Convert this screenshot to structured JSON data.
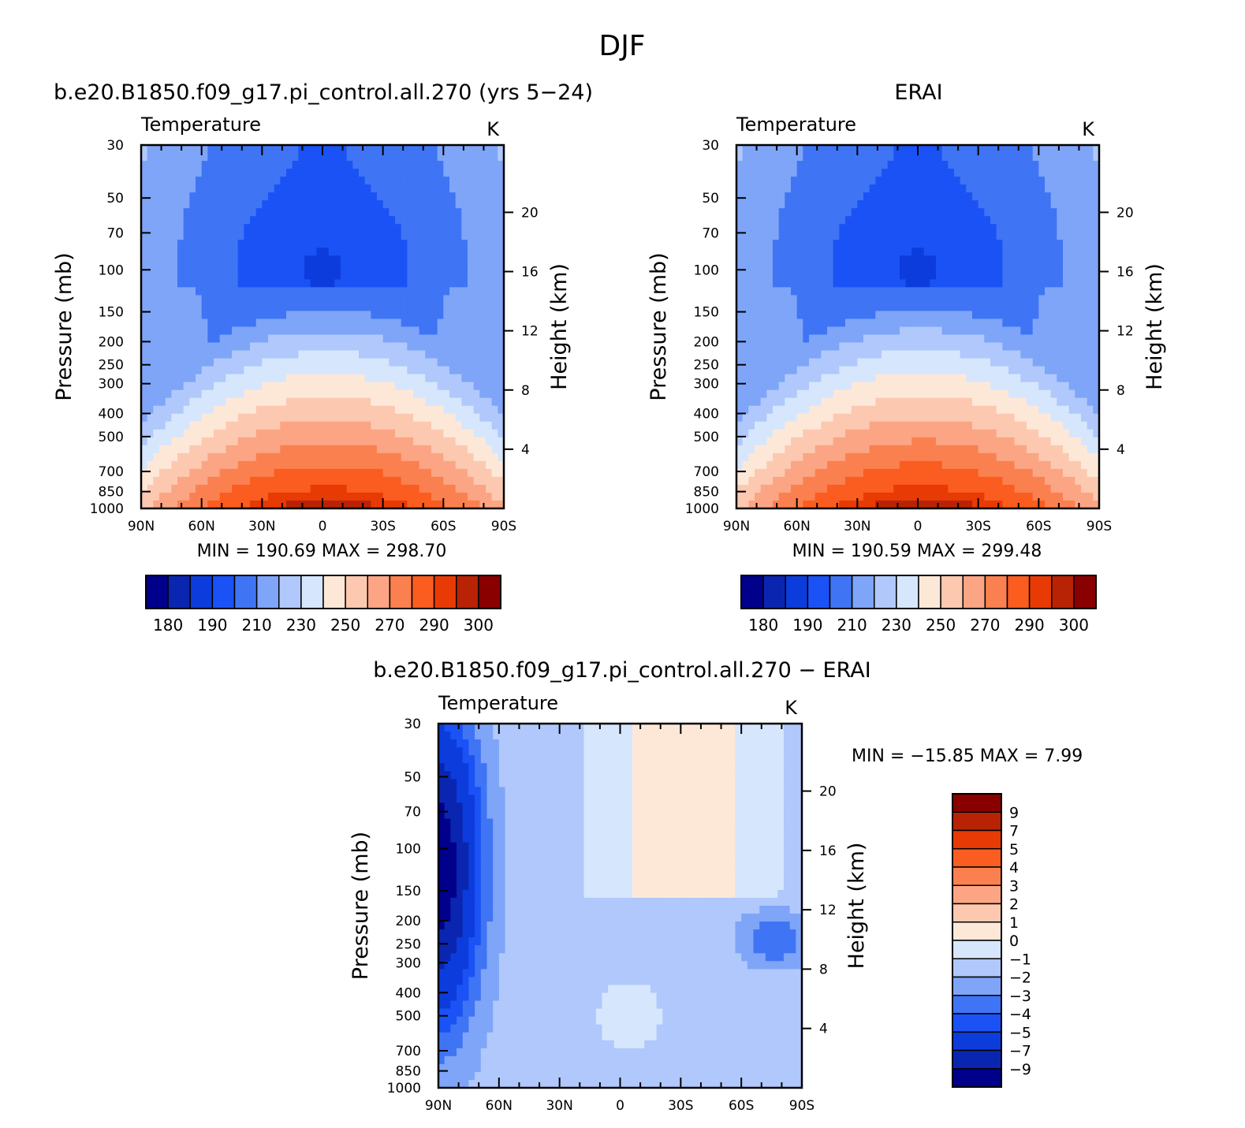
{
  "figure": {
    "title": "DJF"
  },
  "palette_full": [
    "#00008b",
    "#0a26b0",
    "#0c3ddc",
    "#1a52f5",
    "#3f74f4",
    "#7fa5f8",
    "#b0c8fb",
    "#d6e6fd",
    "#fde8d8",
    "#fcc9b0",
    "#fba584",
    "#fb8050",
    "#fb5c20",
    "#e83a05",
    "#b82205",
    "#880000"
  ],
  "palette_diff": [
    "#00008b",
    "#0a26b0",
    "#0c3ddc",
    "#1a52f5",
    "#3f74f4",
    "#7fa5f8",
    "#b0c8fb",
    "#d6e6fd",
    "#fde8d8",
    "#fcc9b0",
    "#fba584",
    "#fb8050",
    "#fb5c20",
    "#e83a05",
    "#b82205",
    "#880000"
  ],
  "chart_data": [
    {
      "id": "model",
      "type": "heatmap",
      "title": "b.e20.B1850.f09_g17.pi_control.all.270 (yrs 5-24)",
      "left_label": "Temperature",
      "right_label": "K",
      "xlabel": "",
      "ylabel": "Pressure (mb)",
      "ylabel_right": "Height (km)",
      "x_ticks": [
        "90N",
        "60N",
        "30N",
        "0",
        "30S",
        "60S",
        "90S"
      ],
      "x_values": [
        90,
        60,
        30,
        0,
        -30,
        -60,
        -90
      ],
      "y_ticks": [
        "30",
        "50",
        "70",
        "100",
        "150",
        "200",
        "250",
        "300",
        "400",
        "500",
        "700",
        "850",
        "1000"
      ],
      "y_values": [
        30,
        50,
        70,
        100,
        150,
        200,
        250,
        300,
        400,
        500,
        700,
        850,
        1000
      ],
      "y2_ticks": [
        "4",
        "8",
        "12",
        "16",
        "20"
      ],
      "y2_values": [
        4,
        8,
        12,
        16,
        20
      ],
      "ylim": [
        1000,
        30
      ],
      "xlim": [
        90,
        -90
      ],
      "stats_text": "MIN =  190.69   MAX =  298.70",
      "min": 190.69,
      "max": 298.7,
      "colorbar": {
        "orientation": "horizontal",
        "levels": [
          180,
          190,
          210,
          230,
          250,
          270,
          290,
          300
        ],
        "labels": [
          "180",
          "190",
          "210",
          "230",
          "250",
          "270",
          "290",
          "300"
        ],
        "n_colors": 16
      }
    },
    {
      "id": "obs",
      "type": "heatmap",
      "title": "ERAI",
      "left_label": "Temperature",
      "right_label": "K",
      "ylabel": "Pressure (mb)",
      "ylabel_right": "Height (km)",
      "x_ticks": [
        "90N",
        "60N",
        "30N",
        "0",
        "30S",
        "60S",
        "90S"
      ],
      "x_values": [
        90,
        60,
        30,
        0,
        -30,
        -60,
        -90
      ],
      "y_ticks": [
        "30",
        "50",
        "70",
        "100",
        "150",
        "200",
        "250",
        "300",
        "400",
        "500",
        "700",
        "850",
        "1000"
      ],
      "y_values": [
        30,
        50,
        70,
        100,
        150,
        200,
        250,
        300,
        400,
        500,
        700,
        850,
        1000
      ],
      "y2_ticks": [
        "4",
        "8",
        "12",
        "16",
        "20"
      ],
      "y2_values": [
        4,
        8,
        12,
        16,
        20
      ],
      "ylim": [
        1000,
        30
      ],
      "xlim": [
        90,
        -90
      ],
      "stats_text": "MIN =  190.59   MAX =  299.48",
      "min": 190.59,
      "max": 299.48,
      "colorbar": {
        "orientation": "horizontal",
        "levels": [
          180,
          190,
          210,
          230,
          250,
          270,
          290,
          300
        ],
        "labels": [
          "180",
          "190",
          "210",
          "230",
          "250",
          "270",
          "290",
          "300"
        ],
        "n_colors": 16
      }
    },
    {
      "id": "diff",
      "type": "heatmap",
      "title": "b.e20.B1850.f09_g17.pi_control.all.270 - ERAI",
      "left_label": "Temperature",
      "right_label": "K",
      "ylabel": "Pressure (mb)",
      "ylabel_right": "Height (km)",
      "x_ticks": [
        "90N",
        "60N",
        "30N",
        "0",
        "30S",
        "60S",
        "90S"
      ],
      "x_values": [
        90,
        60,
        30,
        0,
        -30,
        -60,
        -90
      ],
      "y_ticks": [
        "30",
        "50",
        "70",
        "100",
        "150",
        "200",
        "250",
        "300",
        "400",
        "500",
        "700",
        "850",
        "1000"
      ],
      "y_values": [
        30,
        50,
        70,
        100,
        150,
        200,
        250,
        300,
        400,
        500,
        700,
        850,
        1000
      ],
      "y2_ticks": [
        "4",
        "8",
        "12",
        "16",
        "20"
      ],
      "y2_values": [
        4,
        8,
        12,
        16,
        20
      ],
      "ylim": [
        1000,
        30
      ],
      "xlim": [
        90,
        -90
      ],
      "stats_text": "MIN =  -15.85   MAX =     7.99",
      "min": -15.85,
      "max": 7.99,
      "colorbar": {
        "orientation": "vertical",
        "levels": [
          9,
          7,
          5,
          4,
          3,
          2,
          1,
          0,
          -1,
          -2,
          -3,
          -4,
          -5,
          -7,
          -9
        ],
        "labels": [
          "9",
          "7",
          "5",
          "4",
          "3",
          "2",
          "1",
          "0",
          "-1",
          "-2",
          "-3",
          "-4",
          "-5",
          "-7",
          "-9"
        ],
        "n_colors": 16
      }
    }
  ]
}
